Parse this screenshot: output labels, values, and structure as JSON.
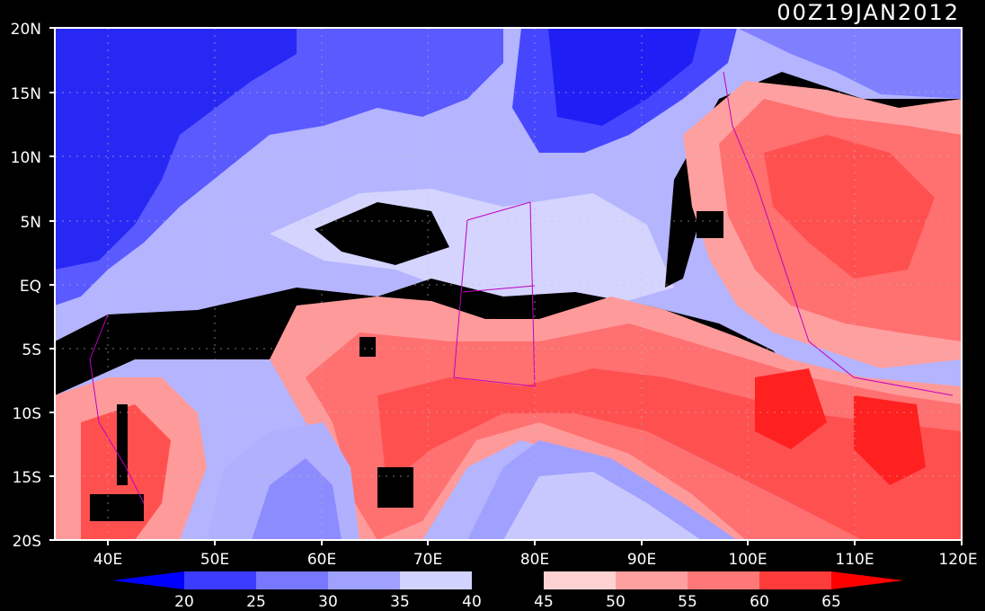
{
  "title": "00Z19JAN2012",
  "lat_labels": [
    "20N",
    "15N",
    "10N",
    "5N",
    "EQ",
    "5S",
    "10S",
    "15S",
    "20S"
  ],
  "lon_labels": [
    "40E",
    "50E",
    "60E",
    "70E",
    "80E",
    "90E",
    "100E",
    "110E",
    "120E"
  ],
  "map_extent": {
    "lon_min": 35,
    "lon_max": 120,
    "lat_min": -20,
    "lat_max": 20
  },
  "colorbar": {
    "levels": [
      "20",
      "25",
      "30",
      "35",
      "40",
      "45",
      "50",
      "55",
      "60",
      "65"
    ],
    "colors": [
      "#0000ff",
      "#3c3cff",
      "#7878ff",
      "#a0a0ff",
      "#d2d2ff",
      "#000000",
      "#ffd2d2",
      "#ffa0a0",
      "#ff7878",
      "#ff3c3c",
      "#ff0000"
    ]
  },
  "palette": {
    "blue_dark": "#1f1ff5",
    "blue_mid": "#5555ff",
    "blue_light": "#8c8cff",
    "blue_pale": "#c8c8ff",
    "black": "#000000",
    "red_pale": "#ffc8c8",
    "red_light": "#ff9696",
    "red_mid": "#ff6464",
    "red_dark": "#ff2020",
    "coast": "#c000c0"
  }
}
